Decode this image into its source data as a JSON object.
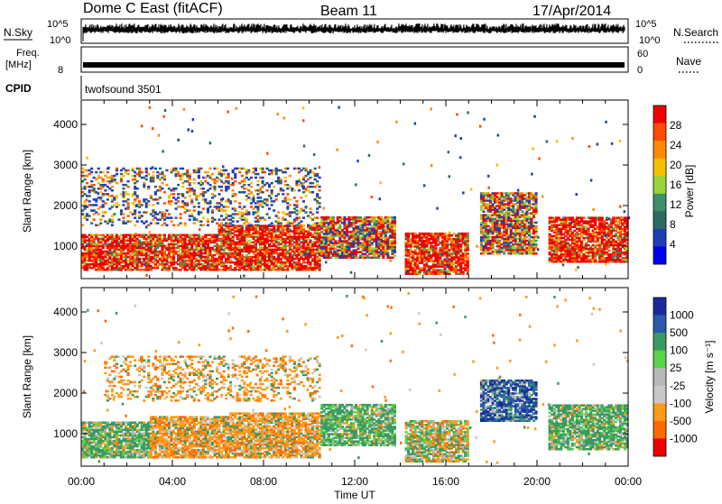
{
  "header": {
    "station": "Dome C East (fitACF)",
    "beam": "Beam 11",
    "date": "17/Apr/2014"
  },
  "top_panels": {
    "nsky_label": "N.Sky",
    "nsky_ticks": [
      "10^5",
      "10^0"
    ],
    "nsearch_label": "N.Search",
    "nsearch_ticks": [
      "10^5",
      "10^0"
    ],
    "freq_label": "Freq.",
    "freq_unit": "[MHz]",
    "freq_value": "8",
    "nave_label": "Nave",
    "nave_ticks": [
      "60",
      "0"
    ],
    "cpid_label": "CPID",
    "cpid_value": "twofsound 3501"
  },
  "colors": {
    "power_scale": [
      "#0000ee",
      "#1f3fb4",
      "#2e6a62",
      "#3f8f6a",
      "#9ad43a",
      "#f5c000",
      "#ff8a00",
      "#ff4a00",
      "#ee0000"
    ],
    "velocity_scale": [
      "#ee0000",
      "#ff6a00",
      "#ff9a1a",
      "#c8c8c8",
      "#b8b8b8",
      "#5ad24a",
      "#3a9a62",
      "#2a5aaa",
      "#1a2a9a"
    ]
  },
  "chart_data": [
    {
      "type": "heatmap",
      "name": "power",
      "xlabel": "Time UT",
      "ylabel": "Slant Range [km]",
      "xlim": [
        0,
        24
      ],
      "ylim": [
        200,
        4600
      ],
      "x_tick_labels": [
        "00:00",
        "04:00",
        "08:00",
        "12:00",
        "16:00",
        "20:00",
        "00:00"
      ],
      "y_ticks": [
        1000,
        2000,
        3000,
        4000
      ],
      "colorbar": {
        "label": "Power [dB]",
        "ticks": [
          "28",
          "24",
          "20",
          "16",
          "12",
          "8",
          "4"
        ]
      },
      "echo_regions": [
        {
          "t_start": 0.0,
          "t_end": 6.0,
          "range_start": 400,
          "range_end": 1300,
          "level": "high"
        },
        {
          "t_start": 6.0,
          "t_end": 10.5,
          "range_start": 400,
          "range_end": 1500,
          "level": "high"
        },
        {
          "t_start": 10.5,
          "t_end": 13.8,
          "range_start": 700,
          "range_end": 1700,
          "level": "medium"
        },
        {
          "t_start": 14.2,
          "t_end": 17.0,
          "range_start": 300,
          "range_end": 1300,
          "level": "high"
        },
        {
          "t_start": 17.5,
          "t_end": 20.0,
          "range_start": 800,
          "range_end": 2300,
          "level": "medium"
        },
        {
          "t_start": 20.5,
          "t_end": 24.0,
          "range_start": 600,
          "range_end": 1700,
          "level": "high"
        },
        {
          "t_start": 0.0,
          "t_end": 10.5,
          "range_start": 1500,
          "range_end": 2900,
          "level": "low"
        }
      ]
    },
    {
      "type": "heatmap",
      "name": "velocity",
      "xlabel": "Time UT",
      "ylabel": "Slant Range [km]",
      "xlim": [
        0,
        24
      ],
      "ylim": [
        200,
        4600
      ],
      "x_tick_labels": [
        "00:00",
        "04:00",
        "08:00",
        "12:00",
        "16:00",
        "20:00",
        "00:00"
      ],
      "y_ticks": [
        1000,
        2000,
        3000,
        4000
      ],
      "colorbar": {
        "label": "Velocity [m s⁻¹]",
        "ticks": [
          "1000",
          "500",
          "100",
          "25",
          "-25",
          "-100",
          "-500",
          "-1000"
        ]
      },
      "echo_regions": [
        {
          "t_start": 0.0,
          "t_end": 3.0,
          "range_start": 400,
          "range_end": 1300,
          "level": "positive"
        },
        {
          "t_start": 3.0,
          "t_end": 6.5,
          "range_start": 400,
          "range_end": 1400,
          "level": "negative"
        },
        {
          "t_start": 6.5,
          "t_end": 10.5,
          "range_start": 400,
          "range_end": 1500,
          "level": "negative"
        },
        {
          "t_start": 10.5,
          "t_end": 13.8,
          "range_start": 700,
          "range_end": 1700,
          "level": "positive"
        },
        {
          "t_start": 14.2,
          "t_end": 17.0,
          "range_start": 300,
          "range_end": 1300,
          "level": "mixed"
        },
        {
          "t_start": 17.5,
          "t_end": 20.0,
          "range_start": 1300,
          "range_end": 2300,
          "level": "fast-positive"
        },
        {
          "t_start": 20.5,
          "t_end": 24.0,
          "range_start": 600,
          "range_end": 1700,
          "level": "positive"
        },
        {
          "t_start": 1.0,
          "t_end": 10.5,
          "range_start": 1800,
          "range_end": 2900,
          "level": "negative"
        }
      ]
    }
  ]
}
